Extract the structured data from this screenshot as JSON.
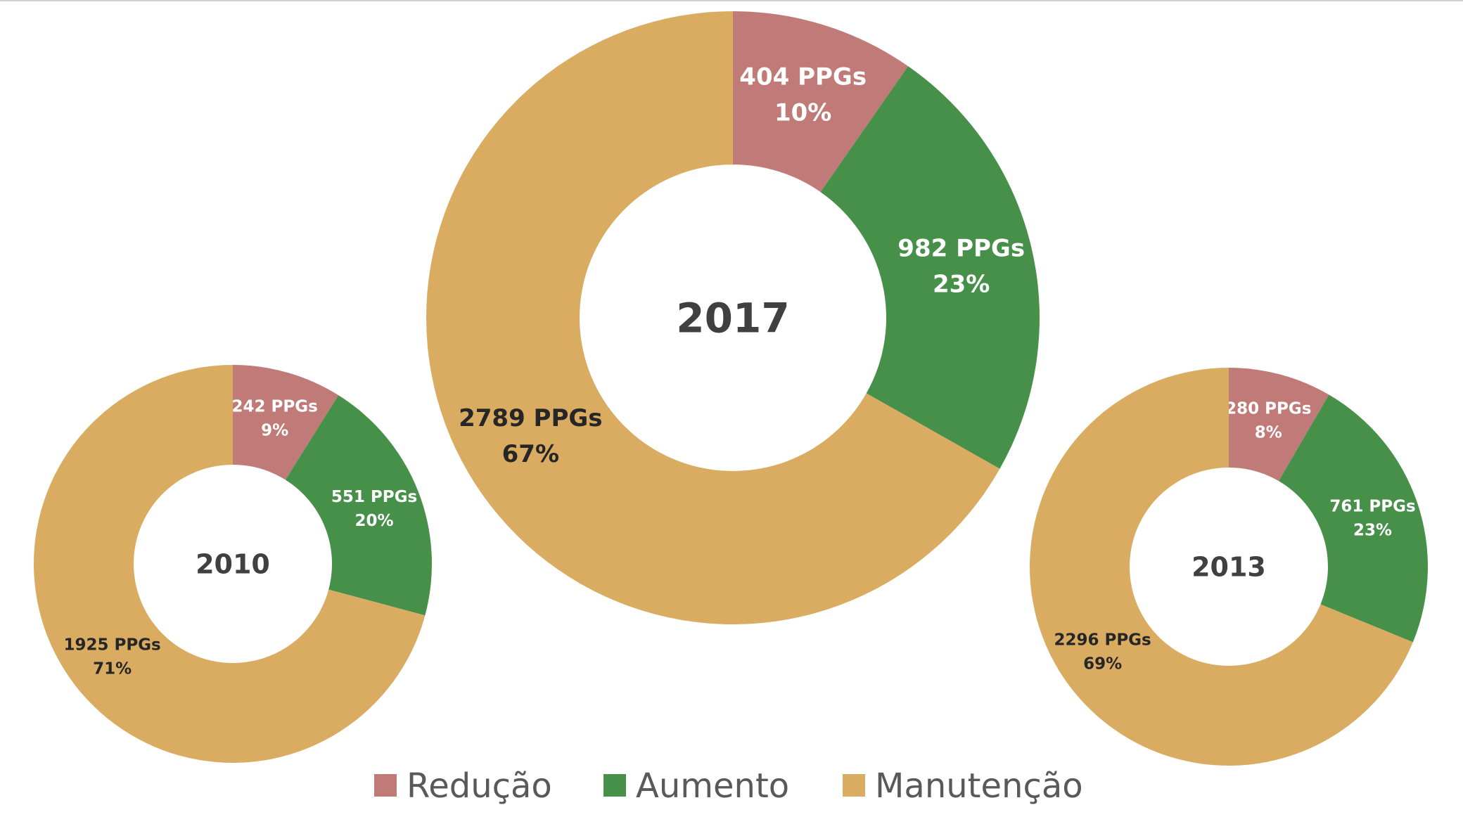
{
  "chart_data": [
    {
      "type": "pie",
      "variant": "donut",
      "center_label": "2010",
      "slices": [
        {
          "category": "Redução",
          "value": 242,
          "value_label": "242 PPGs",
          "percent_label": "9%"
        },
        {
          "category": "Aumento",
          "value": 551,
          "value_label": "551 PPGs",
          "percent_label": "20%"
        },
        {
          "category": "Manutenção",
          "value": 1925,
          "value_label": "1925 PPGs",
          "percent_label": "71%"
        }
      ]
    },
    {
      "type": "pie",
      "variant": "donut",
      "center_label": "2017",
      "slices": [
        {
          "category": "Redução",
          "value": 404,
          "value_label": "404 PPGs",
          "percent_label": "10%"
        },
        {
          "category": "Aumento",
          "value": 982,
          "value_label": "982 PPGs",
          "percent_label": "23%"
        },
        {
          "category": "Manutenção",
          "value": 2789,
          "value_label": "2789 PPGs",
          "percent_label": "67%"
        }
      ]
    },
    {
      "type": "pie",
      "variant": "donut",
      "center_label": "2013",
      "slices": [
        {
          "category": "Redução",
          "value": 280,
          "value_label": "280 PPGs",
          "percent_label": "8%"
        },
        {
          "category": "Aumento",
          "value": 761,
          "value_label": "761 PPGs",
          "percent_label": "23%"
        },
        {
          "category": "Manutenção",
          "value": 2296,
          "value_label": "2296 PPGs",
          "percent_label": "69%"
        }
      ]
    }
  ],
  "legend": {
    "placement": "bottom",
    "items": [
      {
        "label": "Redução",
        "color": "#C07A78"
      },
      {
        "label": "Aumento",
        "color": "#47904A"
      },
      {
        "label": "Manutenção",
        "color": "#D9AC61"
      }
    ]
  },
  "colors": {
    "Redução": "#C07A78",
    "Aumento": "#47904A",
    "Manutenção": "#D9AC61",
    "center_text": "#404040",
    "legend_text": "#595959"
  }
}
